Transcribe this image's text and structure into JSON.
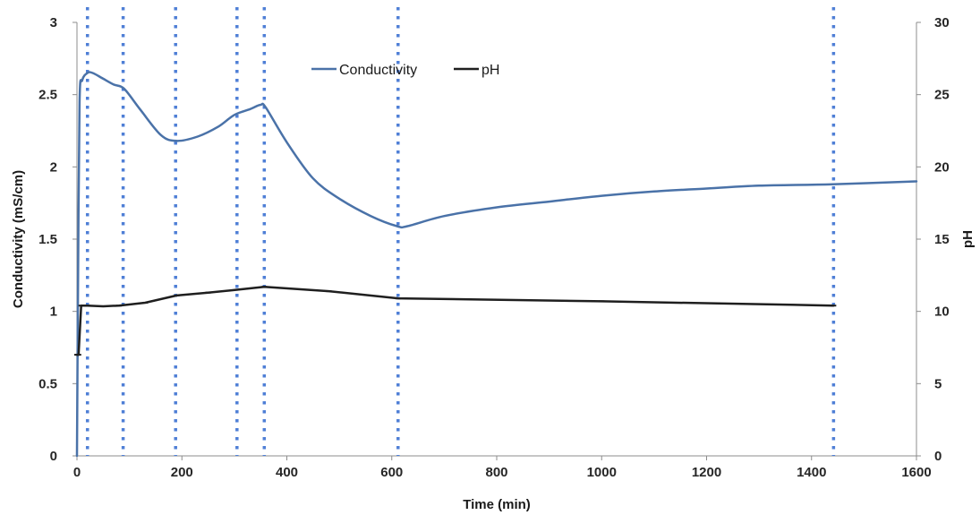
{
  "chart_data": {
    "type": "line",
    "xlabel": "Time (min)",
    "ylabel": "Conductivity (mS/cm)",
    "y2label": "pH",
    "xlim": [
      0,
      1600
    ],
    "ylim": [
      0,
      3
    ],
    "y2lim": [
      0,
      30
    ],
    "xticks": [
      "0",
      "200",
      "400",
      "600",
      "800",
      "1000",
      "1200",
      "1400",
      "1600"
    ],
    "yticks": [
      "0",
      "0.5",
      "1",
      "1.5",
      "2",
      "2.5",
      "3"
    ],
    "y2ticks": [
      "0",
      "5",
      "10",
      "15",
      "20",
      "25",
      "30"
    ],
    "grid": false,
    "legend_position": "top-center",
    "vertical_markers": [
      20,
      88,
      188,
      305,
      357,
      612,
      1442
    ],
    "series": [
      {
        "name": "Conductivity",
        "axis": "left",
        "color": "#4a72a8",
        "points": [
          [
            0,
            0
          ],
          [
            2,
            1.2
          ],
          [
            5,
            2.45
          ],
          [
            10,
            2.6
          ],
          [
            20,
            2.65
          ],
          [
            30,
            2.65
          ],
          [
            50,
            2.61
          ],
          [
            70,
            2.57
          ],
          [
            90,
            2.54
          ],
          [
            120,
            2.4
          ],
          [
            160,
            2.22
          ],
          [
            190,
            2.18
          ],
          [
            230,
            2.21
          ],
          [
            270,
            2.28
          ],
          [
            300,
            2.36
          ],
          [
            330,
            2.4
          ],
          [
            350,
            2.43
          ],
          [
            360,
            2.41
          ],
          [
            400,
            2.17
          ],
          [
            450,
            1.92
          ],
          [
            500,
            1.78
          ],
          [
            560,
            1.66
          ],
          [
            610,
            1.59
          ],
          [
            630,
            1.59
          ],
          [
            700,
            1.66
          ],
          [
            800,
            1.72
          ],
          [
            900,
            1.76
          ],
          [
            1000,
            1.8
          ],
          [
            1100,
            1.83
          ],
          [
            1200,
            1.85
          ],
          [
            1300,
            1.87
          ],
          [
            1440,
            1.88
          ],
          [
            1600,
            1.9
          ]
        ]
      },
      {
        "name": "pH",
        "axis": "right",
        "color": "#1f1f1f",
        "points": [
          [
            0,
            7.0
          ],
          [
            3,
            7.0
          ],
          [
            8,
            10.4
          ],
          [
            20,
            10.4
          ],
          [
            50,
            10.35
          ],
          [
            80,
            10.4
          ],
          [
            130,
            10.6
          ],
          [
            190,
            11.1
          ],
          [
            250,
            11.3
          ],
          [
            305,
            11.5
          ],
          [
            357,
            11.7
          ],
          [
            480,
            11.4
          ],
          [
            612,
            10.9
          ],
          [
            1000,
            10.7
          ],
          [
            1442,
            10.4
          ]
        ]
      }
    ]
  }
}
